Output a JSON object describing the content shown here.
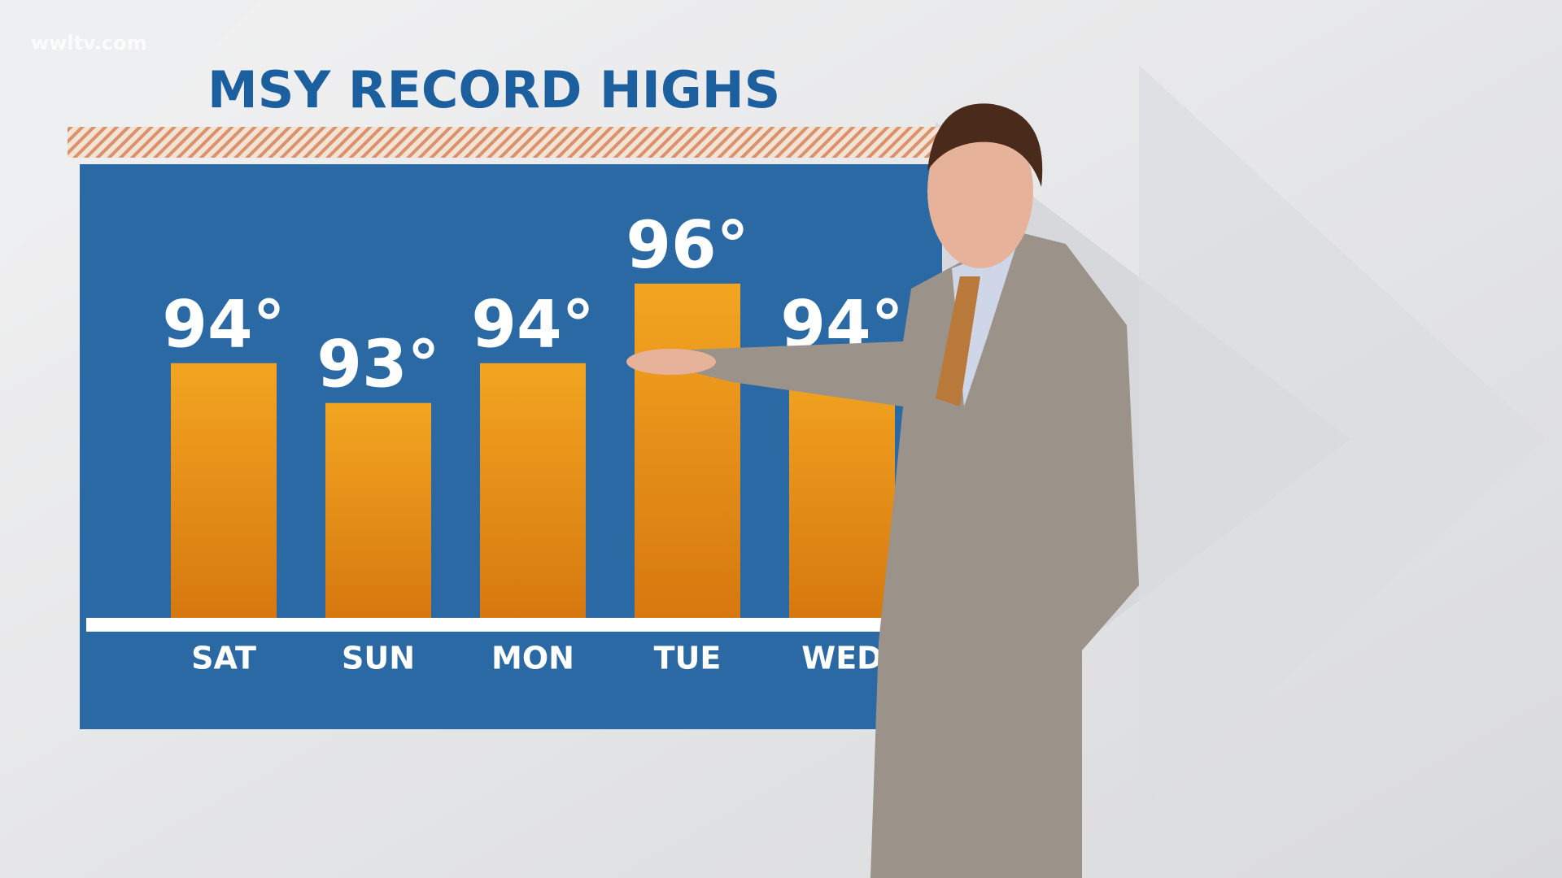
{
  "watermark": "wwltv.com",
  "chart_data": {
    "type": "bar",
    "title": "MSY RECORD HIGHS",
    "categories": [
      "SAT",
      "SUN",
      "MON",
      "TUE",
      "WED"
    ],
    "values": [
      94,
      93,
      94,
      96,
      94
    ],
    "value_labels": [
      "94°",
      "93°",
      "94°",
      "96°",
      "94°"
    ],
    "color": "#e8921a",
    "ylim": [
      87.6,
      99
    ]
  }
}
